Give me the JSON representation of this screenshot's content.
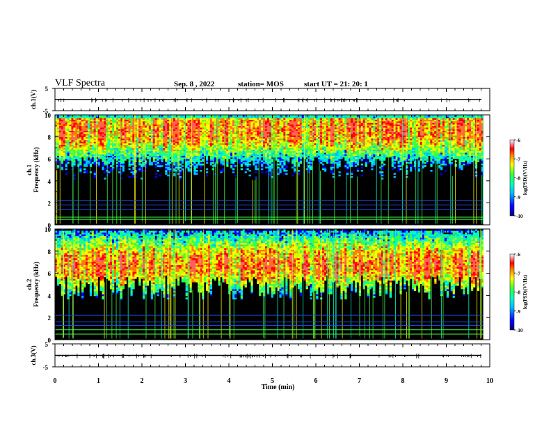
{
  "header": {
    "title": "VLF Spectra",
    "date": "Sep. 8 , 2022",
    "station": "station= MOS",
    "start": "start UT = 21: 20: 1"
  },
  "colors": {
    "spectrogram_background": "#000000",
    "colormap": [
      "#000080",
      "#0000ff",
      "#00c0ff",
      "#00ffc0",
      "#40ff40",
      "#c8ff00",
      "#ffff00",
      "#ff8000",
      "#ff0000",
      "#ff6060",
      "#ffffff"
    ]
  },
  "chart_data": [
    {
      "type": "line",
      "ylabel": "ch.1(V)",
      "ylim": [
        -5,
        5
      ],
      "yticks": [
        "5",
        "-5"
      ],
      "xlim": [
        0,
        10
      ],
      "series": [
        {
          "values_constant": 0
        }
      ]
    },
    {
      "type": "heatmap",
      "ylabel": "ch.1\nFrequency (kHz)",
      "ylabel_lines": [
        "ch.1",
        "Frequency (kHz)"
      ],
      "ylim": [
        0,
        10
      ],
      "yticks": [
        "0",
        "2",
        "4",
        "6",
        "8",
        "10"
      ],
      "xlim": [
        0,
        9.85
      ],
      "colorbar": {
        "label": "log(PSD)(V²/Hz)",
        "range": [
          -10,
          -6
        ],
        "ticks": [
          "-6",
          "-7",
          "-8",
          "-9",
          "-10"
        ]
      },
      "emission_band_khz": [
        4,
        10
      ],
      "peak_khz": 8.6,
      "constant_lines_khz": [
        0.5,
        0.7,
        1.4,
        1.8,
        2.2
      ]
    },
    {
      "type": "heatmap",
      "ylabel": "ch.2\nFrequency (kHz)",
      "ylabel_lines": [
        "ch.2",
        "Frequency (kHz)"
      ],
      "ylim": [
        0,
        10
      ],
      "yticks": [
        "0",
        "2",
        "4",
        "6",
        "8",
        "10"
      ],
      "xlim": [
        0,
        9.85
      ],
      "colorbar": {
        "label": "log(PSD)(V²/Hz)",
        "range": [
          -10,
          -6
        ],
        "ticks": [
          "-6",
          "-7",
          "-8",
          "-9",
          "-10"
        ]
      },
      "emission_band_khz": [
        3.5,
        10
      ],
      "peak_khz": 6.7,
      "constant_lines_khz": [
        0.5,
        0.9,
        1.3,
        1.6,
        2.2
      ]
    },
    {
      "type": "line",
      "ylabel": "ch.3(V)",
      "ylim": [
        -5,
        5
      ],
      "yticks": [
        "5",
        "-5"
      ],
      "xlim": [
        0,
        10
      ],
      "xlabel": "Time (min)",
      "xticks": [
        "0",
        "1",
        "2",
        "3",
        "4",
        "5",
        "6",
        "7",
        "8",
        "9",
        "10"
      ],
      "series": [
        {
          "values_constant": 0
        }
      ]
    }
  ]
}
